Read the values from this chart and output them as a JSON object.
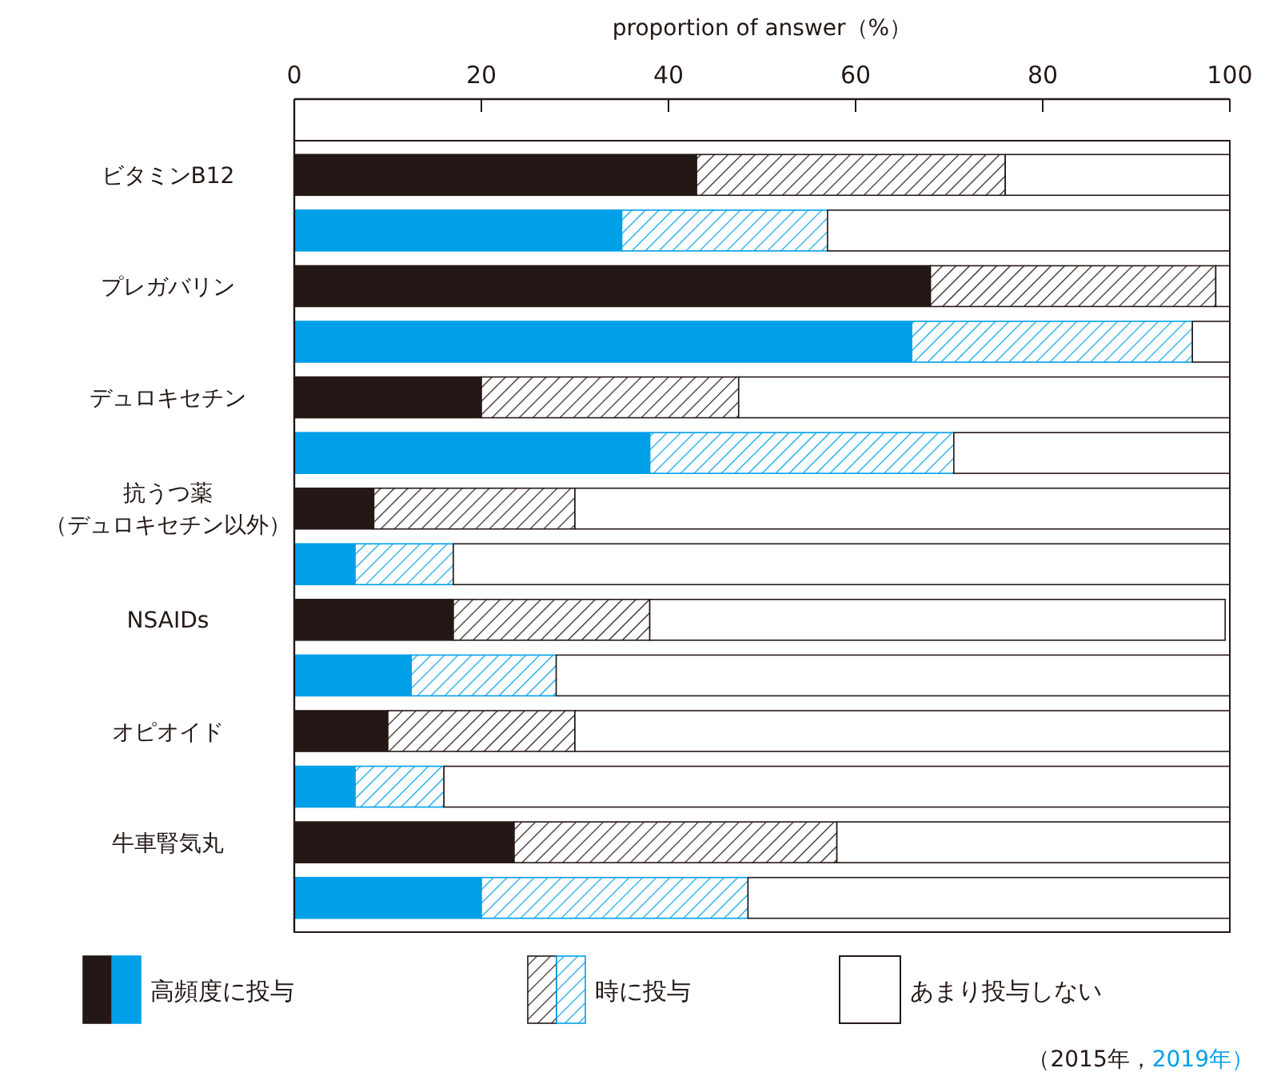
{
  "chart_data": {
    "type": "bar",
    "orientation": "horizontal",
    "stacked": true,
    "xlabel": "proportion of answer（%）",
    "xlim": [
      0,
      100
    ],
    "xticks": [
      0,
      20,
      40,
      60,
      80,
      100
    ],
    "legend": "bottom",
    "categories": [
      "ビタミンB12",
      null,
      "プレガバリン",
      null,
      "デュロキセチン",
      null,
      "抗うつ薬（デュロキセチン以外）",
      null,
      "NSAIDs",
      null,
      "オピオイド",
      null,
      "牛車腎気丸",
      null
    ],
    "series": [
      {
        "name": "高頻度に投与",
        "colors": [
          "#231815",
          "#00a0e9",
          "#231815",
          "#00a0e9",
          "#231815",
          "#00a0e9",
          "#231815",
          "#00a0e9",
          "#231815",
          "#00a0e9",
          "#231815",
          "#00a0e9",
          "#231815",
          "#00a0e9"
        ],
        "values": [
          43,
          35,
          68,
          66,
          20,
          38,
          8.5,
          6.5,
          17,
          12.5,
          10,
          6.5,
          23.5,
          20
        ]
      },
      {
        "name": "時に投与",
        "colors": [
          "#231815",
          "#00a0e9",
          "#231815",
          "#00a0e9",
          "#231815",
          "#00a0e9",
          "#231815",
          "#00a0e9",
          "#231815",
          "#00a0e9",
          "#231815",
          "#00a0e9",
          "#231815",
          "#00a0e9"
        ],
        "values": [
          33,
          22,
          30.5,
          30,
          27.5,
          32.5,
          21.5,
          10.5,
          21,
          15.5,
          20,
          9.5,
          34.5,
          28.5
        ]
      },
      {
        "name": "あまり投与しない",
        "colors": [
          "#ffffff",
          "#ffffff",
          "#ffffff",
          "#ffffff",
          "#ffffff",
          "#ffffff",
          "#ffffff",
          "#ffffff",
          "#ffffff",
          "#ffffff",
          "#ffffff",
          "#ffffff",
          "#ffffff",
          "#ffffff"
        ],
        "values": [
          24,
          43,
          1.5,
          4,
          52.5,
          29.5,
          70,
          83,
          61.5,
          72,
          70,
          84,
          42,
          51.5
        ]
      }
    ],
    "annotations": [
      "（2015年，",
      "2019年）"
    ]
  }
}
